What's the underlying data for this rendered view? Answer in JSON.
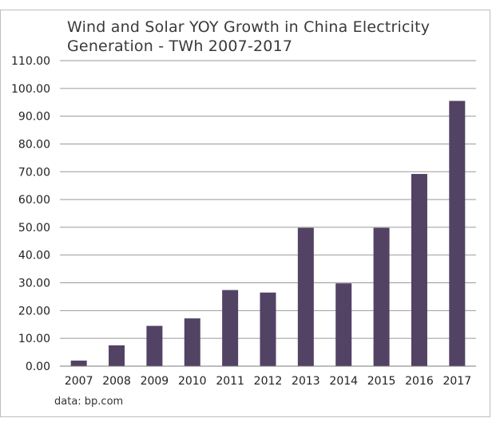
{
  "chart_data": {
    "type": "bar",
    "title": "Wind and Solar YOY Growth in China Electricity Generation - TWh 2007-2017",
    "title_lines": [
      "Wind and Solar YOY Growth in China Electricity",
      "Generation - TWh 2007-2017"
    ],
    "categories": [
      "2007",
      "2008",
      "2009",
      "2010",
      "2011",
      "2012",
      "2013",
      "2014",
      "2015",
      "2016",
      "2017"
    ],
    "values": [
      2,
      7.5,
      14.5,
      17.2,
      27.4,
      26.5,
      49.8,
      29.8,
      49.8,
      69.2,
      95.5
    ],
    "xlabel": "",
    "ylabel": "",
    "ylim": [
      0,
      110
    ],
    "yticks": [
      "0.00",
      "10.00",
      "20.00",
      "30.00",
      "40.00",
      "50.00",
      "60.00",
      "70.00",
      "80.00",
      "90.00",
      "100.00",
      "110.00"
    ],
    "grid": true,
    "bar_color": "#524264",
    "source": "data: bp.com"
  }
}
